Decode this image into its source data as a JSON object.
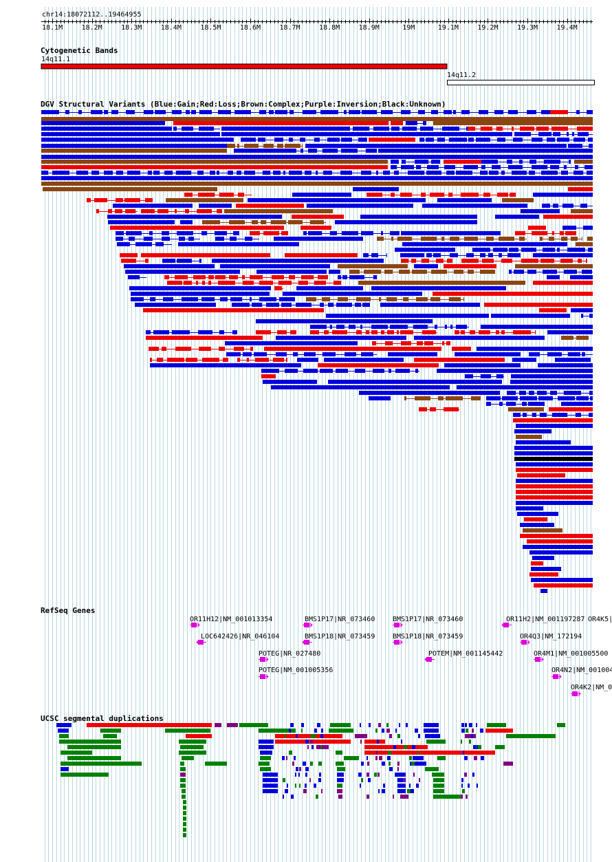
{
  "region": {
    "label": "chr14:18072112..19464955",
    "start": 18072112,
    "end": 19464955,
    "ticks": [
      "18.1M",
      "18.2M",
      "18.3M",
      "18.4M",
      "18.5M",
      "18.6M",
      "18.7M",
      "18.8M",
      "18.9M",
      "19M",
      "19.1M",
      "19.2M",
      "19.3M",
      "19.4M"
    ]
  },
  "colors": {
    "gain": "#0000dd",
    "loss": "#ee0000",
    "complex": "#8b4513",
    "inversion": "#800080",
    "unknown": "#000000",
    "band_red": "#ee0000",
    "gene": "#dd00dd",
    "segdup_green": "#008000",
    "segdup_red": "#ee0000",
    "segdup_blue": "#0000dd",
    "segdup_purple": "#800080",
    "grid": "#b8d8e0"
  },
  "cytobands": {
    "title": "Cytogenetic Bands",
    "bands": [
      {
        "name": "14q11.1",
        "color": "red"
      },
      {
        "name": "14q11.2",
        "color": "white"
      }
    ]
  },
  "dgv": {
    "title": "DGV Structural Variants (Blue:Gain;Red:Loss;Brown:Complex;Purple:Inversion;Black:Unknown)"
  },
  "refseq": {
    "title": "RefSeq Genes",
    "genes": [
      {
        "label": "OR11H12|NM_001013354"
      },
      {
        "label": "LOC642426|NR_046104"
      },
      {
        "label": "POTEG|NR_027480"
      },
      {
        "label": "POTEG|NM_001005356"
      },
      {
        "label": "BMS1P17|NR_073460"
      },
      {
        "label": "BMS1P18|NR_073459"
      },
      {
        "label": "BMS1P17|NR_073460"
      },
      {
        "label": "BMS1P18|NR_073459"
      },
      {
        "label": "POTEM|NM_001145442"
      },
      {
        "label": "OR11H2|NM_001197287"
      },
      {
        "label": "OR4K5|"
      },
      {
        "label": "OR4Q3|NM_172194"
      },
      {
        "label": "OR4M1|NM_001005500"
      },
      {
        "label": "OR4N2|NM_001004"
      },
      {
        "label": "OR4K2|NM_0"
      }
    ]
  },
  "segdups": {
    "title": "UCSC segmental duplications"
  }
}
